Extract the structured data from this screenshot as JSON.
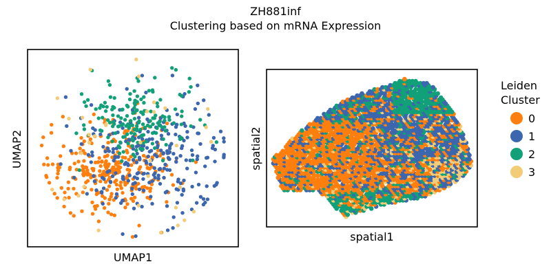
{
  "figure": {
    "title_line1": "ZH881inf",
    "title_line2": "Clustering based on mRNA Expression"
  },
  "legend": {
    "title_line1": "Leiden",
    "title_line2": "Cluster",
    "entries": [
      {
        "label": "0",
        "color": "#ff7f0e"
      },
      {
        "label": "1",
        "color": "#3c66ad"
      },
      {
        "label": "2",
        "color": "#12a079"
      },
      {
        "label": "3",
        "color": "#f2cc76"
      }
    ]
  },
  "chart_data": [
    {
      "type": "scatter",
      "title": "",
      "xlabel": "UMAP1",
      "ylabel": "UMAP2",
      "ticks": "hidden",
      "grid": false,
      "clusters": [
        {
          "name": "0",
          "color": "#ff7f0e",
          "center": [
            -0.3,
            -0.3
          ],
          "spread": [
            0.42,
            0.36
          ],
          "count": 300
        },
        {
          "name": "1",
          "color": "#3c66ad",
          "center": [
            0.3,
            -0.15
          ],
          "spread": [
            0.5,
            0.45
          ],
          "count": 260
        },
        {
          "name": "2",
          "color": "#12a079",
          "center": [
            0.1,
            0.5
          ],
          "spread": [
            0.38,
            0.3
          ],
          "count": 170
        },
        {
          "name": "3",
          "color": "#f2cc76",
          "center": [
            0.05,
            0.0
          ],
          "spread": [
            0.6,
            0.6
          ],
          "count": 35
        }
      ],
      "xlim": [
        -1.5,
        1.5
      ],
      "ylim": [
        -1.5,
        1.5
      ]
    },
    {
      "type": "scatter",
      "title": "",
      "xlabel": "spatial1",
      "ylabel": "spatial2",
      "ticks": "hidden",
      "grid": false,
      "tissue_outline": [
        [
          -0.95,
          -0.15
        ],
        [
          -0.7,
          0.2
        ],
        [
          -0.45,
          0.45
        ],
        [
          -0.25,
          0.62
        ],
        [
          -0.05,
          0.72
        ],
        [
          0.15,
          0.8
        ],
        [
          0.3,
          0.88
        ],
        [
          0.55,
          0.82
        ],
        [
          0.72,
          0.58
        ],
        [
          0.85,
          0.25
        ],
        [
          0.92,
          0.0
        ],
        [
          0.95,
          -0.25
        ],
        [
          0.78,
          -0.45
        ],
        [
          0.5,
          -0.62
        ],
        [
          0.1,
          -0.72
        ],
        [
          -0.25,
          -0.88
        ],
        [
          -0.5,
          -0.55
        ],
        [
          -0.85,
          -0.55
        ]
      ],
      "regions": [
        {
          "name": "0",
          "color": "#ff7f0e",
          "area": "left-center and bottom-center"
        },
        {
          "name": "1",
          "color": "#3c66ad",
          "area": "center and right"
        },
        {
          "name": "2",
          "color": "#12a079",
          "area": "top-right lobe and bottom lobe"
        },
        {
          "name": "3",
          "color": "#f2cc76",
          "area": "scattered, lower right"
        }
      ],
      "xlim": [
        -1,
        1
      ],
      "ylim": [
        -1,
        1
      ]
    }
  ]
}
